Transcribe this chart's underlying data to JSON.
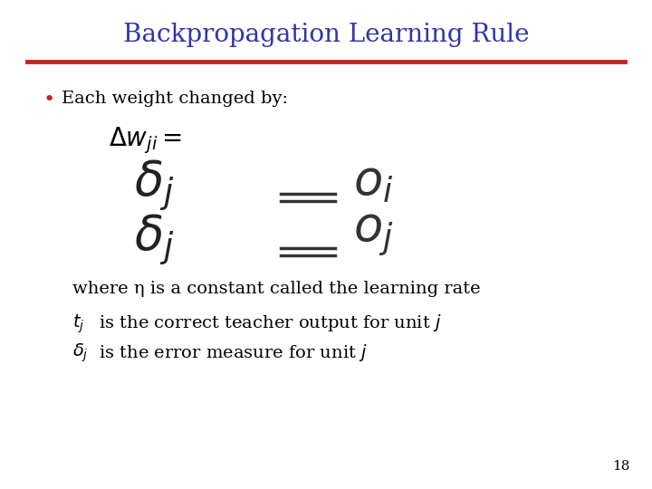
{
  "title": "Backpropagation Learning Rule",
  "title_color": "#3333aa",
  "title_fontsize": 20,
  "bg_color": "#ffffff",
  "rule_color": "#cc2222",
  "bullet_text": "Each weight changed by:",
  "line1": "where η is a constant called the learning rate",
  "line2_math": "$t_j$",
  "line2_text": " is the correct teacher output for unit ",
  "line2_end": "$j$",
  "line3_math": "$\\delta_j$",
  "line3_text": " is the error measure for unit ",
  "line3_end": "$j$",
  "page_num": "18",
  "text_color": "#000000",
  "body_fontsize": 14,
  "math_main_fontsize": 20,
  "math_large_fontsize": 38,
  "gray_color": "#555555"
}
